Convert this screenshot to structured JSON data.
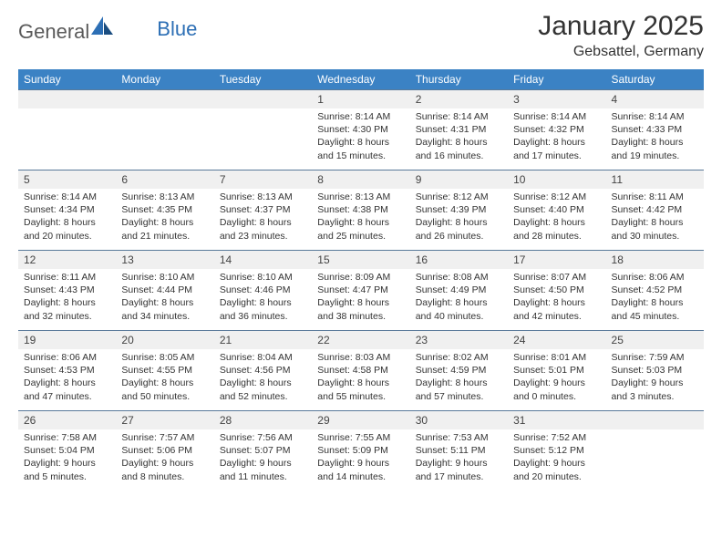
{
  "brand": {
    "text1": "General",
    "text2": "Blue"
  },
  "title": "January 2025",
  "location": "Gebsattel, Germany",
  "colors": {
    "header_bg": "#3b82c4",
    "header_text": "#ffffff",
    "daynum_bg": "#f0f0f0",
    "row_border": "#5a7a9a",
    "body_text": "#333333",
    "brand_gray": "#5a5a5a",
    "brand_blue": "#2d6fb5"
  },
  "day_headers": [
    "Sunday",
    "Monday",
    "Tuesday",
    "Wednesday",
    "Thursday",
    "Friday",
    "Saturday"
  ],
  "weeks": [
    [
      {
        "n": "",
        "sr": "",
        "ss": "",
        "dl": ""
      },
      {
        "n": "",
        "sr": "",
        "ss": "",
        "dl": ""
      },
      {
        "n": "",
        "sr": "",
        "ss": "",
        "dl": ""
      },
      {
        "n": "1",
        "sr": "Sunrise: 8:14 AM",
        "ss": "Sunset: 4:30 PM",
        "dl": "Daylight: 8 hours and 15 minutes."
      },
      {
        "n": "2",
        "sr": "Sunrise: 8:14 AM",
        "ss": "Sunset: 4:31 PM",
        "dl": "Daylight: 8 hours and 16 minutes."
      },
      {
        "n": "3",
        "sr": "Sunrise: 8:14 AM",
        "ss": "Sunset: 4:32 PM",
        "dl": "Daylight: 8 hours and 17 minutes."
      },
      {
        "n": "4",
        "sr": "Sunrise: 8:14 AM",
        "ss": "Sunset: 4:33 PM",
        "dl": "Daylight: 8 hours and 19 minutes."
      }
    ],
    [
      {
        "n": "5",
        "sr": "Sunrise: 8:14 AM",
        "ss": "Sunset: 4:34 PM",
        "dl": "Daylight: 8 hours and 20 minutes."
      },
      {
        "n": "6",
        "sr": "Sunrise: 8:13 AM",
        "ss": "Sunset: 4:35 PM",
        "dl": "Daylight: 8 hours and 21 minutes."
      },
      {
        "n": "7",
        "sr": "Sunrise: 8:13 AM",
        "ss": "Sunset: 4:37 PM",
        "dl": "Daylight: 8 hours and 23 minutes."
      },
      {
        "n": "8",
        "sr": "Sunrise: 8:13 AM",
        "ss": "Sunset: 4:38 PM",
        "dl": "Daylight: 8 hours and 25 minutes."
      },
      {
        "n": "9",
        "sr": "Sunrise: 8:12 AM",
        "ss": "Sunset: 4:39 PM",
        "dl": "Daylight: 8 hours and 26 minutes."
      },
      {
        "n": "10",
        "sr": "Sunrise: 8:12 AM",
        "ss": "Sunset: 4:40 PM",
        "dl": "Daylight: 8 hours and 28 minutes."
      },
      {
        "n": "11",
        "sr": "Sunrise: 8:11 AM",
        "ss": "Sunset: 4:42 PM",
        "dl": "Daylight: 8 hours and 30 minutes."
      }
    ],
    [
      {
        "n": "12",
        "sr": "Sunrise: 8:11 AM",
        "ss": "Sunset: 4:43 PM",
        "dl": "Daylight: 8 hours and 32 minutes."
      },
      {
        "n": "13",
        "sr": "Sunrise: 8:10 AM",
        "ss": "Sunset: 4:44 PM",
        "dl": "Daylight: 8 hours and 34 minutes."
      },
      {
        "n": "14",
        "sr": "Sunrise: 8:10 AM",
        "ss": "Sunset: 4:46 PM",
        "dl": "Daylight: 8 hours and 36 minutes."
      },
      {
        "n": "15",
        "sr": "Sunrise: 8:09 AM",
        "ss": "Sunset: 4:47 PM",
        "dl": "Daylight: 8 hours and 38 minutes."
      },
      {
        "n": "16",
        "sr": "Sunrise: 8:08 AM",
        "ss": "Sunset: 4:49 PM",
        "dl": "Daylight: 8 hours and 40 minutes."
      },
      {
        "n": "17",
        "sr": "Sunrise: 8:07 AM",
        "ss": "Sunset: 4:50 PM",
        "dl": "Daylight: 8 hours and 42 minutes."
      },
      {
        "n": "18",
        "sr": "Sunrise: 8:06 AM",
        "ss": "Sunset: 4:52 PM",
        "dl": "Daylight: 8 hours and 45 minutes."
      }
    ],
    [
      {
        "n": "19",
        "sr": "Sunrise: 8:06 AM",
        "ss": "Sunset: 4:53 PM",
        "dl": "Daylight: 8 hours and 47 minutes."
      },
      {
        "n": "20",
        "sr": "Sunrise: 8:05 AM",
        "ss": "Sunset: 4:55 PM",
        "dl": "Daylight: 8 hours and 50 minutes."
      },
      {
        "n": "21",
        "sr": "Sunrise: 8:04 AM",
        "ss": "Sunset: 4:56 PM",
        "dl": "Daylight: 8 hours and 52 minutes."
      },
      {
        "n": "22",
        "sr": "Sunrise: 8:03 AM",
        "ss": "Sunset: 4:58 PM",
        "dl": "Daylight: 8 hours and 55 minutes."
      },
      {
        "n": "23",
        "sr": "Sunrise: 8:02 AM",
        "ss": "Sunset: 4:59 PM",
        "dl": "Daylight: 8 hours and 57 minutes."
      },
      {
        "n": "24",
        "sr": "Sunrise: 8:01 AM",
        "ss": "Sunset: 5:01 PM",
        "dl": "Daylight: 9 hours and 0 minutes."
      },
      {
        "n": "25",
        "sr": "Sunrise: 7:59 AM",
        "ss": "Sunset: 5:03 PM",
        "dl": "Daylight: 9 hours and 3 minutes."
      }
    ],
    [
      {
        "n": "26",
        "sr": "Sunrise: 7:58 AM",
        "ss": "Sunset: 5:04 PM",
        "dl": "Daylight: 9 hours and 5 minutes."
      },
      {
        "n": "27",
        "sr": "Sunrise: 7:57 AM",
        "ss": "Sunset: 5:06 PM",
        "dl": "Daylight: 9 hours and 8 minutes."
      },
      {
        "n": "28",
        "sr": "Sunrise: 7:56 AM",
        "ss": "Sunset: 5:07 PM",
        "dl": "Daylight: 9 hours and 11 minutes."
      },
      {
        "n": "29",
        "sr": "Sunrise: 7:55 AM",
        "ss": "Sunset: 5:09 PM",
        "dl": "Daylight: 9 hours and 14 minutes."
      },
      {
        "n": "30",
        "sr": "Sunrise: 7:53 AM",
        "ss": "Sunset: 5:11 PM",
        "dl": "Daylight: 9 hours and 17 minutes."
      },
      {
        "n": "31",
        "sr": "Sunrise: 7:52 AM",
        "ss": "Sunset: 5:12 PM",
        "dl": "Daylight: 9 hours and 20 minutes."
      },
      {
        "n": "",
        "sr": "",
        "ss": "",
        "dl": ""
      }
    ]
  ]
}
